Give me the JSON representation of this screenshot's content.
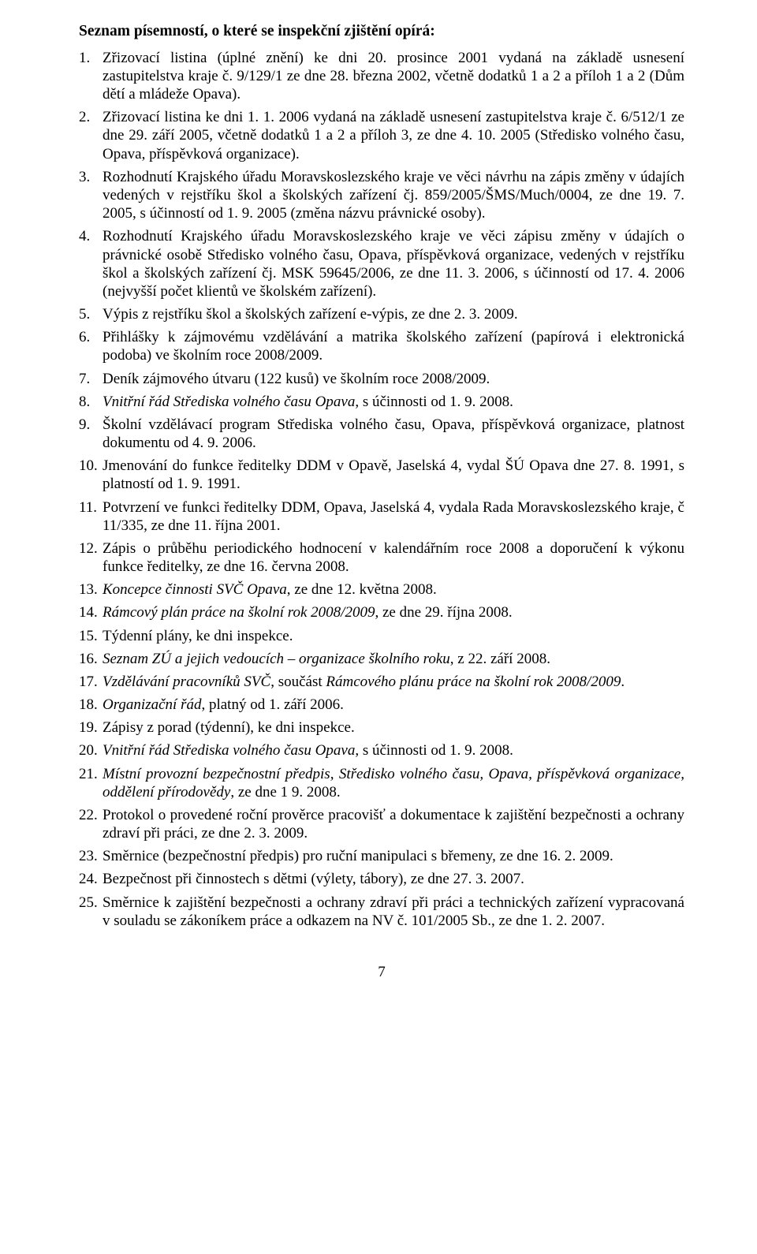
{
  "heading": "Seznam písemností, o které se inspekční zjištění opírá:",
  "items": [
    {
      "n": "1.",
      "segs": [
        {
          "t": "Zřizovací listina (úplné znění) ke dni 20. prosince 2001 vydaná na základě usnesení zastupitelstva kraje č. 9/129/1 ze dne 28. března 2002, včetně dodatků 1 a 2 a příloh 1 a 2 (Dům dětí a mládeže Opava)."
        }
      ]
    },
    {
      "n": "2.",
      "segs": [
        {
          "t": "Zřizovací listina ke dni 1. 1. 2006 vydaná na základě usnesení zastupitelstva kraje č. 6/512/1 ze dne 29. září 2005, včetně dodatků 1 a 2 a příloh 3, ze dne 4. 10. 2005 (Středisko volného času, Opava, příspěvková organizace)."
        }
      ]
    },
    {
      "n": "3.",
      "segs": [
        {
          "t": "Rozhodnutí Krajského úřadu Moravskoslezského kraje ve věci návrhu na zápis změny v údajích vedených v rejstříku škol a školských zařízení čj. 859/2005/ŠMS/Much/0004, ze dne 19. 7. 2005, s účinností od 1. 9. 2005 (změna názvu právnické osoby)."
        }
      ]
    },
    {
      "n": "4.",
      "segs": [
        {
          "t": "Rozhodnutí Krajského úřadu Moravskoslezského kraje ve věci zápisu změny v údajích o právnické osobě Středisko volného času, Opava, příspěvková organizace, vedených v rejstříku škol a školských zařízení čj. MSK 59645/2006, ze dne 11. 3. 2006, s účinností od 17. 4. 2006 (nejvyšší počet klientů ve školském zařízení)."
        }
      ]
    },
    {
      "n": "5.",
      "segs": [
        {
          "t": "Výpis z rejstříku škol a školských zařízení e-výpis, ze dne 2. 3. 2009."
        }
      ]
    },
    {
      "n": "6.",
      "segs": [
        {
          "t": "Přihlášky k zájmovému vzdělávání a matrika školského zařízení (papírová i elektronická podoba) ve školním roce 2008/2009."
        }
      ]
    },
    {
      "n": "7.",
      "segs": [
        {
          "t": "Deník zájmového útvaru (122 kusů) ve školním roce 2008/2009."
        }
      ]
    },
    {
      "n": "8.",
      "segs": [
        {
          "t": "Vnitřní řád Střediska volného času Opava",
          "i": true
        },
        {
          "t": ", s účinnosti od 1. 9. 2008."
        }
      ]
    },
    {
      "n": "9.",
      "segs": [
        {
          "t": "Školní vzdělávací program Střediska volného času, Opava, příspěvková organizace, platnost dokumentu od 4. 9. 2006."
        }
      ]
    },
    {
      "n": "10.",
      "segs": [
        {
          "t": "Jmenování do funkce ředitelky DDM v Opavě, Jaselská 4, vydal ŠÚ Opava dne 27. 8. 1991, s platností od 1. 9. 1991."
        }
      ]
    },
    {
      "n": "11.",
      "segs": [
        {
          "t": "Potvrzení ve funkci ředitelky DDM, Opava, Jaselská 4, vydala Rada Moravskoslezského kraje, č 11/335, ze dne 11. října 2001."
        }
      ]
    },
    {
      "n": "12.",
      "segs": [
        {
          "t": "Zápis o průběhu periodického hodnocení v kalendářním roce 2008 a doporučení k výkonu funkce ředitelky, ze dne 16. června 2008."
        }
      ]
    },
    {
      "n": "13.",
      "segs": [
        {
          "t": "Koncepce činnosti SVČ Opava",
          "i": true
        },
        {
          "t": ", ze dne 12. května 2008."
        }
      ]
    },
    {
      "n": "14.",
      "segs": [
        {
          "t": "Rámcový plán práce na školní rok 2008/2009",
          "i": true
        },
        {
          "t": ", ze dne 29. října 2008."
        }
      ]
    },
    {
      "n": "15.",
      "segs": [
        {
          "t": "Týdenní plány, ke dni inspekce."
        }
      ]
    },
    {
      "n": "16.",
      "segs": [
        {
          "t": "Seznam ZÚ a jejich vedoucích – organizace školního roku",
          "i": true
        },
        {
          "t": ", z 22. září 2008."
        }
      ]
    },
    {
      "n": "17.",
      "segs": [
        {
          "t": "Vzdělávání pracovníků SVČ",
          "i": true
        },
        {
          "t": ", součást "
        },
        {
          "t": "Rámcového plánu práce na školní rok 2008/2009",
          "i": true
        },
        {
          "t": "."
        }
      ]
    },
    {
      "n": "18.",
      "segs": [
        {
          "t": "Organizační řád",
          "i": true
        },
        {
          "t": ", platný od 1. září 2006."
        }
      ]
    },
    {
      "n": "19.",
      "segs": [
        {
          "t": "Zápisy z porad (týdenní), ke dni inspekce."
        }
      ]
    },
    {
      "n": "20.",
      "segs": [
        {
          "t": "Vnitřní řád Střediska volného času Opava",
          "i": true
        },
        {
          "t": ", s účinnosti od 1. 9. 2008."
        }
      ]
    },
    {
      "n": "21.",
      "segs": [
        {
          "t": "Místní provozní bezpečnostní předpis, Středisko volného času, Opava, příspěvková organizace, oddělení přírodovědy",
          "i": true
        },
        {
          "t": ", ze dne 1 9. 2008."
        }
      ]
    },
    {
      "n": "22.",
      "segs": [
        {
          "t": "Protokol o provedené roční prověrce pracovišť a dokumentace k zajištění bezpečnosti a ochrany zdraví při práci, ze dne 2. 3. 2009."
        }
      ]
    },
    {
      "n": "23.",
      "segs": [
        {
          "t": "Směrnice (bezpečnostní předpis) pro ruční manipulaci s břemeny, ze dne 16. 2. 2009."
        }
      ]
    },
    {
      "n": "24.",
      "segs": [
        {
          "t": "Bezpečnost při činnostech s dětmi (výlety, tábory), ze dne 27. 3. 2007."
        }
      ]
    },
    {
      "n": "25.",
      "segs": [
        {
          "t": "Směrnice k zajištění bezpečnosti a ochrany zdraví při práci a technických zařízení vypracovaná v souladu se zákoníkem práce a odkazem na NV č. 101/2005 Sb., ze dne 1. 2. 2007."
        }
      ]
    }
  ],
  "pageNumber": "7"
}
